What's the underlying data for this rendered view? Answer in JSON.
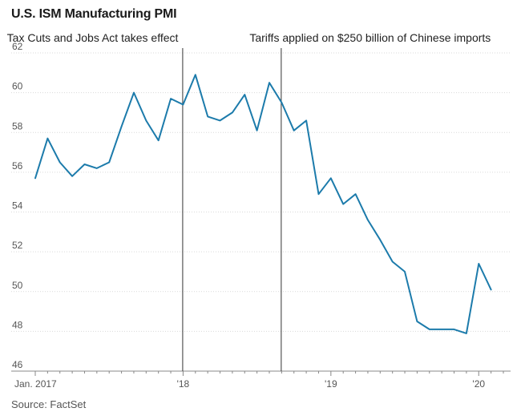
{
  "chart_data": {
    "type": "line",
    "title": "U.S. ISM Manufacturing PMI",
    "source": "Source: FactSet",
    "xlabel": "",
    "ylabel": "",
    "ylim": [
      46,
      62
    ],
    "yticks": [
      62,
      60,
      58,
      56,
      54,
      52,
      50,
      48,
      46
    ],
    "xlim": [
      2017.0,
      2020.1667
    ],
    "xticks": [
      {
        "label": "Jan. 2017",
        "x": 2017.0
      },
      {
        "label": "'18",
        "x": 2018.0
      },
      {
        "label": "'19",
        "x": 2019.0
      },
      {
        "label": "'20",
        "x": 2020.0
      }
    ],
    "grid": true,
    "series": [
      {
        "name": "ISM Manufacturing PMI",
        "color": "#1c7bab",
        "x": [
          2017.0,
          2017.0833,
          2017.1667,
          2017.25,
          2017.3333,
          2017.4167,
          2017.5,
          2017.5833,
          2017.6667,
          2017.75,
          2017.8333,
          2017.9167,
          2018.0,
          2018.0833,
          2018.1667,
          2018.25,
          2018.3333,
          2018.4167,
          2018.5,
          2018.5833,
          2018.6667,
          2018.75,
          2018.8333,
          2018.9167,
          2019.0,
          2019.0833,
          2019.1667,
          2019.25,
          2019.3333,
          2019.4167,
          2019.5,
          2019.5833,
          2019.6667,
          2019.75,
          2019.8333,
          2019.9167,
          2020.0,
          2020.0833
        ],
        "values": [
          55.7,
          57.7,
          56.5,
          55.8,
          56.4,
          56.2,
          56.5,
          58.3,
          60.0,
          58.6,
          57.6,
          59.7,
          59.4,
          60.9,
          58.8,
          58.6,
          59.0,
          59.9,
          58.1,
          60.5,
          59.5,
          58.1,
          58.6,
          54.9,
          55.7,
          54.4,
          54.9,
          53.6,
          52.6,
          51.5,
          51.0,
          48.5,
          48.1,
          48.1,
          48.1,
          47.9,
          51.4,
          50.1
        ]
      }
    ],
    "annotations": [
      {
        "label": "Tax Cuts and Jobs Act takes effect",
        "x": 2018.0
      },
      {
        "label": "Tariffs applied on $250 billion of Chinese imports",
        "x": 2018.6667
      }
    ]
  }
}
